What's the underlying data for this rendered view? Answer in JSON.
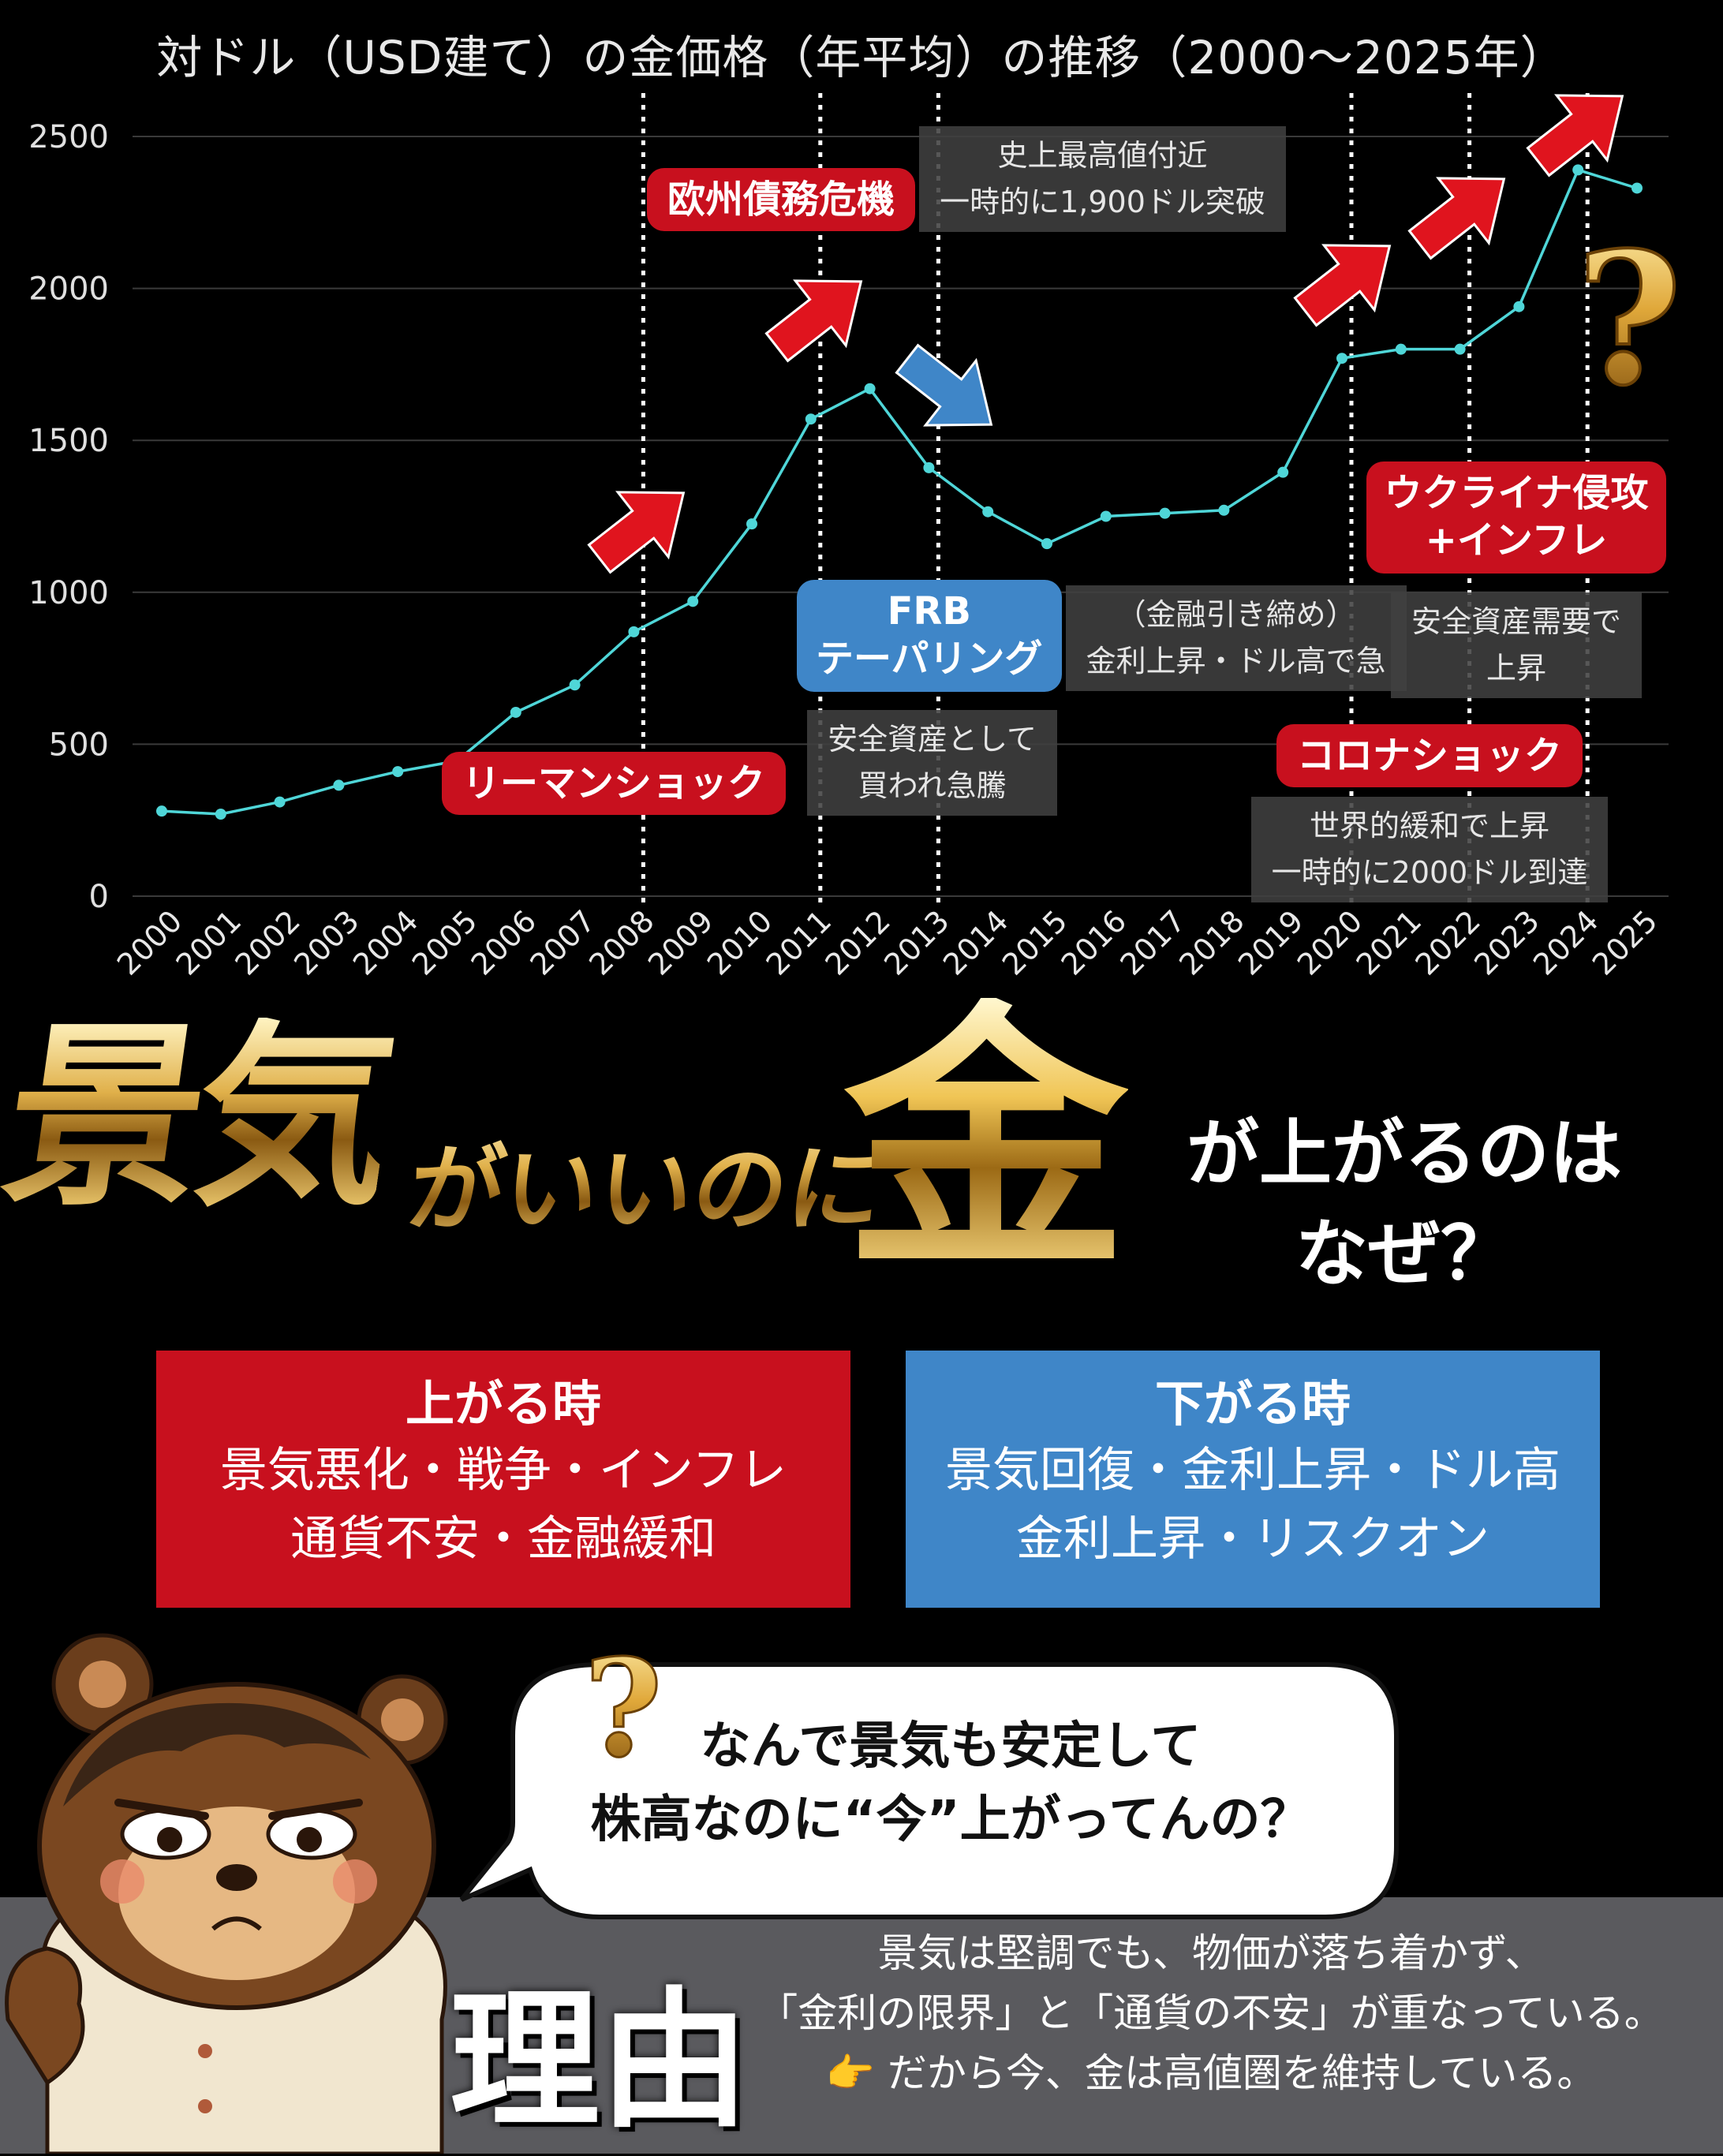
{
  "title": "対ドル（USD建て）の金価格（年平均）の推移（2000〜2025年）",
  "chart_data": {
    "type": "line",
    "x": [
      "2000",
      "2001",
      "2002",
      "2003",
      "2004",
      "2005",
      "2006",
      "2007",
      "2008",
      "2009",
      "2010",
      "2011",
      "2012",
      "2013",
      "2014",
      "2015",
      "2016",
      "2017",
      "2018",
      "2019",
      "2020",
      "2021",
      "2022",
      "2023",
      "2024",
      "2025"
    ],
    "y": [
      280,
      270,
      310,
      365,
      410,
      445,
      605,
      695,
      870,
      970,
      1225,
      1570,
      1670,
      1410,
      1265,
      1160,
      1250,
      1260,
      1270,
      1395,
      1770,
      1800,
      1800,
      1940,
      2390,
      2330
    ],
    "y_ticks": [
      "0",
      "500",
      "1000",
      "1500",
      "2000",
      "2500"
    ],
    "ylim": [
      0,
      2500
    ],
    "grid": true,
    "line_color": "#4fd6d8",
    "event_lines": [
      "2008",
      "2011",
      "2013",
      "2020",
      "2022",
      "2024"
    ],
    "annotations": [
      {
        "id": "lehman",
        "label": "リーマンショック",
        "style": "red",
        "note_lines": [
          "安全資産として",
          "買われ急騰"
        ]
      },
      {
        "id": "euro",
        "label": "欧州債務危機",
        "style": "red",
        "note_lines": [
          "史上最高値付近",
          "一時的に1,900ドル突破"
        ]
      },
      {
        "id": "frb",
        "label": "FRB テーパリング",
        "label_lines": [
          "FRB",
          "テーパリング"
        ],
        "style": "blue",
        "note_lines": [
          "（金融引き締め）",
          "金利上昇・ドル高で急"
        ]
      },
      {
        "id": "corona",
        "label": "コロナショック",
        "style": "red",
        "note_lines": [
          "世界的緩和で上昇",
          "一時的に2000ドル到達"
        ]
      },
      {
        "id": "ukraine",
        "label": "ウクライナ侵攻 +インフレ",
        "label_lines": [
          "ウクライナ侵攻",
          "+インフレ"
        ],
        "style": "red",
        "note_lines": [
          "安全資産需要で",
          "上昇"
        ]
      }
    ]
  },
  "headline": {
    "part1": "景気",
    "part2": "がいいのに",
    "kin": "金",
    "tail_lines": [
      "が上がるのは",
      "なぜ？"
    ]
  },
  "up_box": {
    "title": "上がる時",
    "lines": [
      "景気悪化・戦争・インフレ",
      "通貨不安・金融緩和"
    ],
    "color": "#c8101e"
  },
  "down_box": {
    "title": "下がる時",
    "lines": [
      "景気回復・金利上昇・ドル高",
      "金利上昇・リスクオン"
    ],
    "color": "#3f86c8"
  },
  "speech": {
    "lines": [
      "なんで景気も安定して",
      "株高なのに“今”上がってんの？"
    ]
  },
  "reason": {
    "label": "理由",
    "lines": [
      "景気は堅調でも、物価が落ち着かず、",
      "「金利の限界」と「通貨の不安」が重なっている。",
      "👉 だから今、金は高値圏を維持している。"
    ]
  },
  "icons": [
    "question-mark-icon",
    "up-arrow-icon",
    "down-arrow-icon",
    "bear-character",
    "pointing-hand-icon"
  ]
}
